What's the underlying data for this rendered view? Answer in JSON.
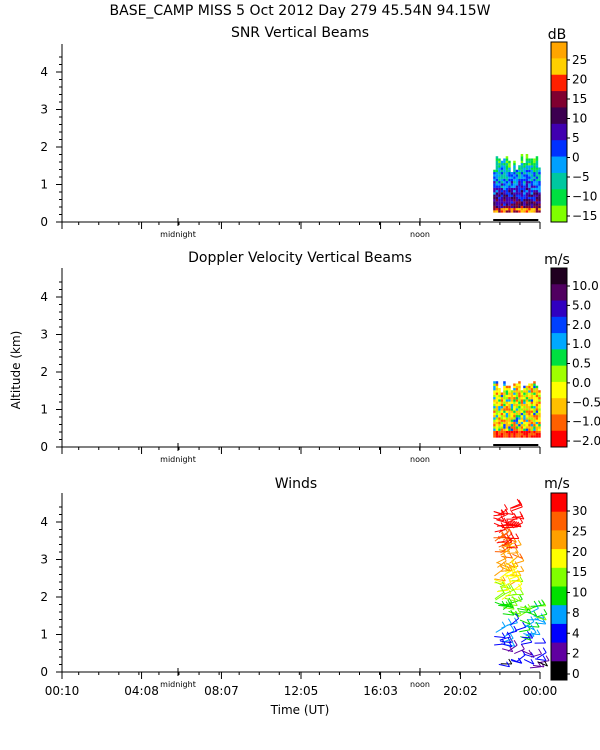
{
  "header": "BASE_CAMP MISS    5 Oct 2012 Day 279 45.54N  94.15W",
  "y_axis_label": "Altitude (km)",
  "x_axis_label": "Time (UT)",
  "day_markers": [
    "midnight",
    "noon"
  ],
  "x_tick_labels": [
    "00:10",
    "04:08",
    "08:07",
    "12:05",
    "16:03",
    "20:02",
    "00:00"
  ],
  "y_tick_labels": [
    "0",
    "1",
    "2",
    "3",
    "4"
  ],
  "chart_data": [
    {
      "type": "heatmap",
      "title": "SNR Vertical Beams",
      "colorbar_unit": "dB",
      "colorbar_labels": [
        "25",
        "20",
        "15",
        "10",
        "5",
        "0",
        "−5",
        "−10",
        "−15"
      ],
      "colorbar_colors": [
        "#ffa500",
        "#ffd000",
        "#ff2000",
        "#800030",
        "#3c0050",
        "#4000b0",
        "#0030ff",
        "#00a0ff",
        "#00c8a0",
        "#00e040",
        "#80ff00"
      ],
      "ylim": [
        0,
        4.7
      ],
      "data_time_range": [
        "21:40",
        "23:55"
      ],
      "data_alt_range_km": [
        0.25,
        1.8
      ]
    },
    {
      "type": "heatmap",
      "title": "Doppler Velocity Vertical Beams",
      "colorbar_unit": "m/s",
      "colorbar_labels": [
        "10.0",
        "5.0",
        "2.0",
        "1.0",
        "0.5",
        "0.0",
        "−0.5",
        "−1.0",
        "−2.0"
      ],
      "colorbar_colors": [
        "#200020",
        "#500060",
        "#3000c0",
        "#0040ff",
        "#00a8ff",
        "#00e040",
        "#a0ff00",
        "#ffff00",
        "#ffc000",
        "#ff6000",
        "#ff0000"
      ],
      "ylim": [
        0,
        4.7
      ],
      "data_time_range": [
        "21:40",
        "23:55"
      ],
      "data_alt_range_km": [
        0.25,
        1.8
      ]
    },
    {
      "type": "scatter",
      "title": "Winds",
      "colorbar_unit": "m/s",
      "colorbar_labels": [
        "30",
        "25",
        "20",
        "15",
        "10",
        "8",
        "4",
        "2",
        "0"
      ],
      "colorbar_colors": [
        "#ff0000",
        "#ff6000",
        "#ffa000",
        "#ffff00",
        "#80ff00",
        "#00e000",
        "#00a0ff",
        "#0000ff",
        "#6000a0",
        "#000000"
      ],
      "ylim": [
        0,
        4.4
      ],
      "data_time_range": [
        "21:40",
        "23:55"
      ],
      "data_alt_range_km": [
        0.1,
        4.4
      ]
    }
  ]
}
